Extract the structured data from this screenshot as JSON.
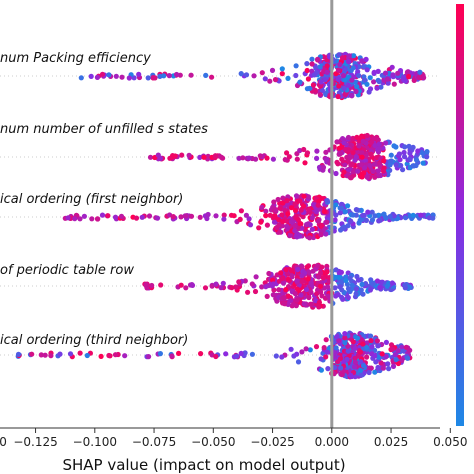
{
  "chart_data": {
    "type": "scatter",
    "subtype": "shap-beeswarm",
    "xlabel": "SHAP value (impact on model output)",
    "xlim": [
      -0.14,
      0.06
    ],
    "x_ticks": [
      -0.125,
      -0.1,
      -0.075,
      -0.05,
      -0.025,
      0.0,
      0.025,
      0.05
    ],
    "x_tick_labels": [
      "−0.125",
      "−0.100",
      "−0.075",
      "−0.050",
      "−0.025",
      "0.000",
      "0.025",
      "0.050"
    ],
    "zero_line": 0.0,
    "grid": false,
    "colorbar": {
      "low_color": "#1e88e5",
      "high_color": "#ff0052",
      "placement": "right"
    },
    "features": [
      {
        "label": "num Packing efficiency",
        "min": -0.107,
        "max": 0.048,
        "mode": 0.003,
        "spread_left": 0.03,
        "spread_right": 0.022,
        "high_value_side": "mixed"
      },
      {
        "label": "num number of unfilled s states",
        "min": -0.077,
        "max": 0.047,
        "mode": 0.013,
        "spread_left": 0.03,
        "spread_right": 0.02,
        "high_value_side": "left"
      },
      {
        "label": "ical ordering (first neighbor)",
        "min": -0.113,
        "max": 0.057,
        "mode": -0.012,
        "spread_left": 0.035,
        "spread_right": 0.045,
        "high_value_side": "left"
      },
      {
        "label": "of periodic table row",
        "min": -0.08,
        "max": 0.045,
        "mode": -0.01,
        "spread_left": 0.035,
        "spread_right": 0.04,
        "high_value_side": "left"
      },
      {
        "label": "ical ordering (third neighbor)",
        "min": -0.133,
        "max": 0.04,
        "mode": 0.008,
        "spread_left": 0.025,
        "spread_right": 0.02,
        "high_value_side": "mixed"
      }
    ]
  }
}
